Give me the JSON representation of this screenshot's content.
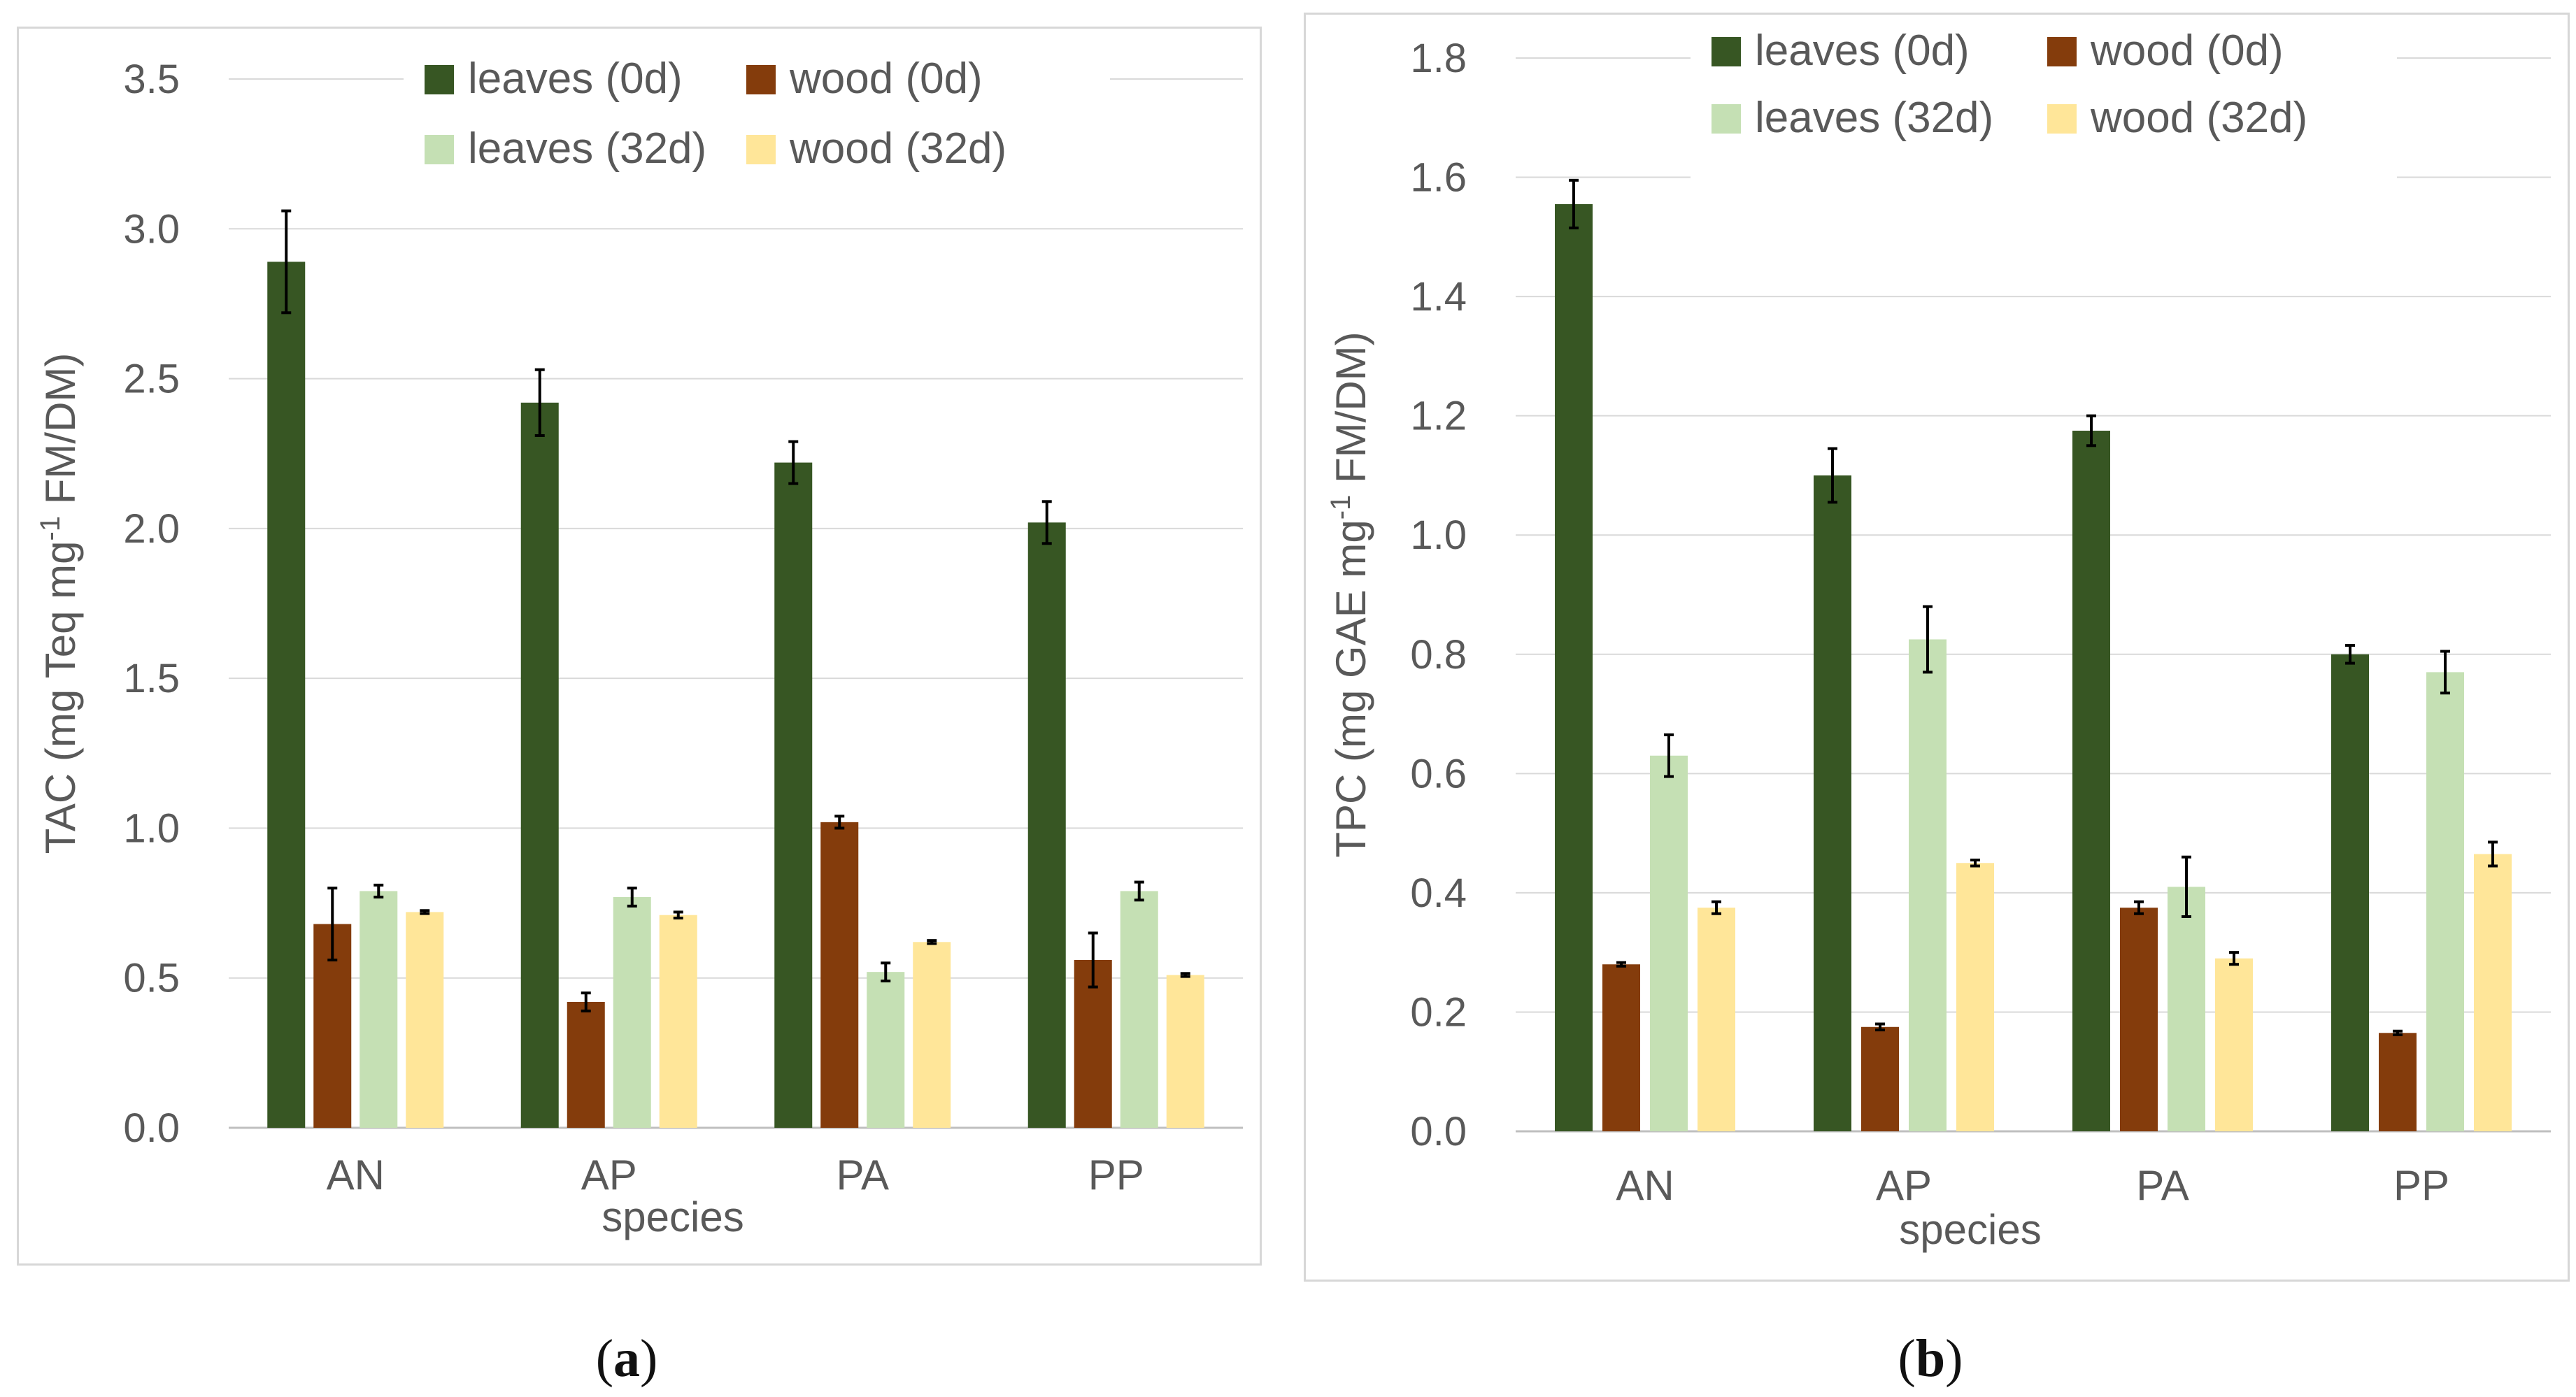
{
  "chart_data": [
    {
      "type": "bar",
      "panel": "a",
      "title": "",
      "xlabel": "species",
      "ylabel": "TAC (mg Teq mg-1 FM/DM)",
      "ylabel_prefix": "TAC (mg Teq mg",
      "ylabel_sup": "-1",
      "ylabel_suffix": " FM/DM)",
      "categories": [
        "AN",
        "AP",
        "PA",
        "PP"
      ],
      "ylim": [
        0,
        3.5
      ],
      "yticks": [
        0.0,
        0.5,
        1.0,
        1.5,
        2.0,
        2.5,
        3.0,
        3.5
      ],
      "ytick_labels": [
        "0.0",
        "0.5",
        "1.0",
        "1.5",
        "2.0",
        "2.5",
        "3.0",
        "3.5"
      ],
      "grid": true,
      "legend_position": "top",
      "series": [
        {
          "name": "leaves (0d)",
          "color": "#375623",
          "values": [
            2.89,
            2.42,
            2.22,
            2.02
          ],
          "errors": [
            0.17,
            0.11,
            0.07,
            0.07
          ]
        },
        {
          "name": "wood (0d)",
          "color": "#843c0c",
          "values": [
            0.68,
            0.42,
            1.02,
            0.56
          ],
          "errors": [
            0.12,
            0.03,
            0.02,
            0.09
          ]
        },
        {
          "name": "leaves (32d)",
          "color": "#c5e0b4",
          "values": [
            0.79,
            0.77,
            0.52,
            0.79
          ],
          "errors": [
            0.02,
            0.03,
            0.03,
            0.03
          ]
        },
        {
          "name": "wood (32d)",
          "color": "#ffe699",
          "values": [
            0.72,
            0.71,
            0.62,
            0.51
          ],
          "errors": [
            0.005,
            0.01,
            0.005,
            0.005
          ]
        }
      ]
    },
    {
      "type": "bar",
      "panel": "b",
      "title": "",
      "xlabel": "species",
      "ylabel": "TPC (mg GAE mg-1 FM/DM)",
      "ylabel_prefix": "TPC (mg GAE mg",
      "ylabel_sup": "-1",
      "ylabel_suffix": " FM/DM)",
      "categories": [
        "AN",
        "AP",
        "PA",
        "PP"
      ],
      "ylim": [
        0,
        1.8
      ],
      "yticks": [
        0.0,
        0.2,
        0.4,
        0.6,
        0.8,
        1.0,
        1.2,
        1.4,
        1.6,
        1.8
      ],
      "ytick_labels": [
        "0.0",
        "0.2",
        "0.4",
        "0.6",
        "0.8",
        "1.0",
        "1.2",
        "1.4",
        "1.6",
        "1.8"
      ],
      "grid": true,
      "legend_position": "top",
      "series": [
        {
          "name": "leaves (0d)",
          "color": "#375623",
          "values": [
            1.555,
            1.1,
            1.175,
            0.8
          ],
          "errors": [
            0.04,
            0.045,
            0.025,
            0.015
          ]
        },
        {
          "name": "wood (0d)",
          "color": "#843c0c",
          "values": [
            0.28,
            0.175,
            0.375,
            0.165
          ],
          "errors": [
            0.003,
            0.005,
            0.01,
            0.003
          ]
        },
        {
          "name": "leaves (32d)",
          "color": "#c5e0b4",
          "values": [
            0.63,
            0.825,
            0.41,
            0.77
          ],
          "errors": [
            0.035,
            0.055,
            0.05,
            0.035
          ]
        },
        {
          "name": "wood (32d)",
          "color": "#ffe699",
          "values": [
            0.375,
            0.45,
            0.29,
            0.465
          ],
          "errors": [
            0.01,
            0.005,
            0.01,
            0.02
          ]
        }
      ]
    }
  ],
  "captions": [
    {
      "open": "(",
      "letter": "a",
      "close": ")"
    },
    {
      "open": "(",
      "letter": "b",
      "close": ")"
    }
  ]
}
